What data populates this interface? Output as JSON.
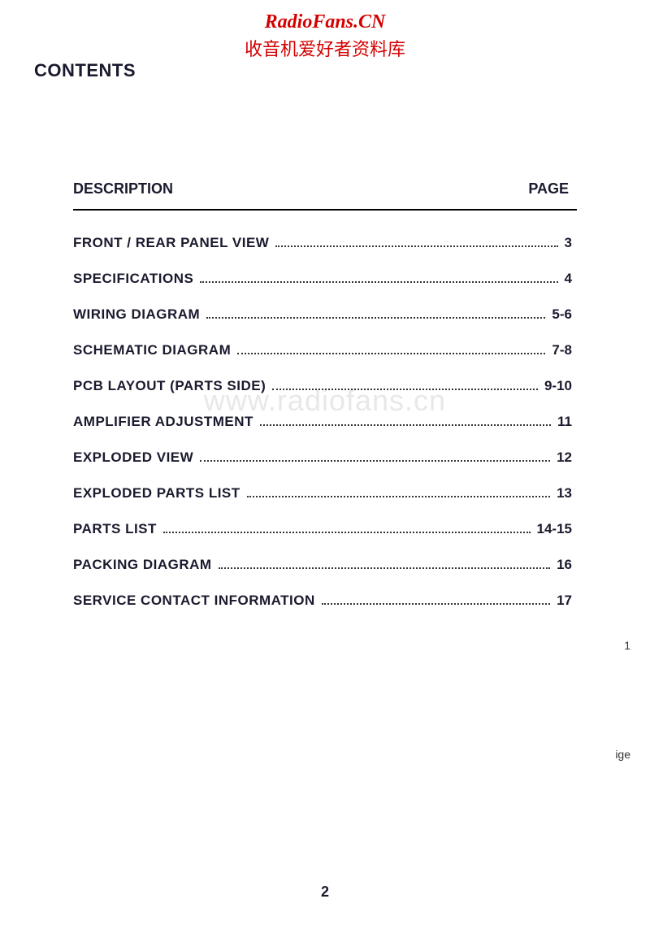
{
  "watermark": {
    "url": "RadioFans.CN",
    "subtitle": "收音机爱好者资料库",
    "center": "www.radiofans.cn"
  },
  "headings": {
    "contents": "CONTENTS",
    "description": "DESCRIPTION",
    "page": "PAGE"
  },
  "toc": {
    "items": [
      {
        "label": "FRONT / REAR PANEL VIEW",
        "page": "3"
      },
      {
        "label": "SPECIFICATIONS",
        "page": "4"
      },
      {
        "label": "WIRING DIAGRAM",
        "page": "5-6"
      },
      {
        "label": "SCHEMATIC DIAGRAM",
        "page": "7-8"
      },
      {
        "label": "PCB LAYOUT (PARTS SIDE)",
        "page": "9-10"
      },
      {
        "label": "AMPLIFIER  ADJUSTMENT",
        "page": "11"
      },
      {
        "label": "EXPLODED VIEW",
        "page": "12"
      },
      {
        "label": "EXPLODED PARTS LIST",
        "page": "13"
      },
      {
        "label": "PARTS LIST",
        "page": "14-15"
      },
      {
        "label": "PACKING DIAGRAM",
        "page": "16"
      },
      {
        "label": "SERVICE CONTACT INFORMATION",
        "page": "17"
      }
    ]
  },
  "page_number": "2",
  "stray": {
    "s1": "1",
    "s2": "ige"
  },
  "colors": {
    "watermark_red": "#d40000",
    "text_dark": "#1a1a2e",
    "background": "#ffffff",
    "watermark_gray": "#e8e8e8"
  }
}
